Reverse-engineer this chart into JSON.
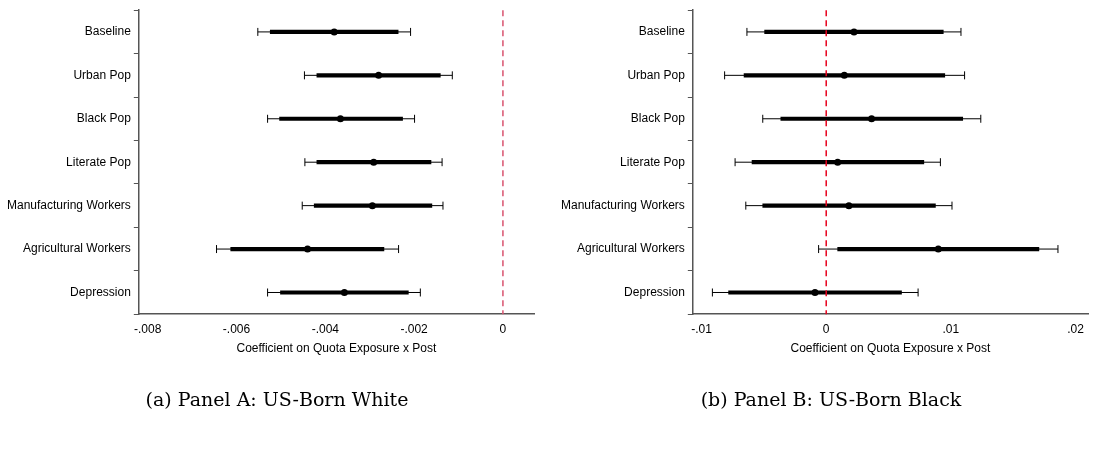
{
  "chart_data": [
    {
      "type": "scatter",
      "orientation": "horizontal",
      "title": "(a) Panel A: US-Born White",
      "xlabel": "Coefficient on Quota Exposure x Post",
      "categories": [
        "Baseline",
        "Urban Pop",
        "Black Pop",
        "Literate Pop",
        "Manufacturing Workers",
        "Agricultural Workers",
        "Depression"
      ],
      "xlim": [
        -0.0082,
        0.0007
      ],
      "xticks": [
        {
          "value": -0.008,
          "label": "-.008"
        },
        {
          "value": -0.006,
          "label": "-.006"
        },
        {
          "value": -0.004,
          "label": "-.004"
        },
        {
          "value": -0.002,
          "label": "-.002"
        },
        0
      ],
      "grid": false,
      "legend": false,
      "ref_lines": [
        {
          "axis": "x",
          "value": 0,
          "color": "#d9536f",
          "line_style": "dashed"
        }
      ],
      "series": [
        {
          "type": "bar",
          "color": "#000000",
          "base": [
            -0.00524,
            -0.00419,
            -0.00503,
            -0.00419,
            -0.00425,
            -0.00613,
            -0.00501
          ],
          "values": [
            0.00288,
            0.00278,
            0.00277,
            0.00257,
            0.00265,
            0.00345,
            0.00288
          ]
        },
        {
          "type": "scatter",
          "color": "#000000",
          "marker": "circle",
          "values": [
            -0.0038,
            -0.0028,
            -0.00366,
            -0.00291,
            -0.00294,
            -0.0044,
            -0.00357
          ],
          "errors": [
            [
              -0.00552,
              -0.00208
            ],
            [
              -0.00447,
              -0.00114
            ],
            [
              -0.0053,
              -0.00199
            ],
            [
              -0.00446,
              -0.00137
            ],
            [
              -0.00452,
              -0.00135
            ],
            [
              -0.00645,
              -0.00235
            ],
            [
              -0.0053,
              -0.00186
            ]
          ]
        }
      ]
    },
    {
      "type": "scatter",
      "orientation": "horizontal",
      "title": "(b) Panel B: US-Born Black",
      "xlabel": "Coefficient on Quota Exposure x Post",
      "categories": [
        "Baseline",
        "Urban Pop",
        "Black Pop",
        "Literate Pop",
        "Manufacturing Workers",
        "Agricultural Workers",
        "Depression"
      ],
      "xlim": [
        -0.0107,
        0.021
      ],
      "xticks": [
        {
          "value": -0.01,
          "label": "-.01"
        },
        0,
        {
          "value": 0.01,
          "label": ".01"
        },
        {
          "value": 0.02,
          "label": ".02"
        }
      ],
      "grid": false,
      "legend": false,
      "ref_lines": [
        {
          "axis": "x",
          "value": 0,
          "color": "#e8001c",
          "line_style": "dashed"
        }
      ],
      "series": [
        {
          "type": "bar",
          "color": "#000000",
          "base": [
            -0.00494,
            -0.00659,
            -0.00364,
            -0.00595,
            -0.00509,
            0.00092,
            -0.00783
          ],
          "values": [
            0.01433,
            0.0161,
            0.01459,
            0.01378,
            0.01385,
            0.01614,
            0.01387
          ]
        },
        {
          "type": "scatter",
          "color": "#000000",
          "marker": "circle",
          "values": [
            0.00223,
            0.00145,
            0.00364,
            0.00092,
            0.00182,
            0.00899,
            -0.0009
          ],
          "errors": [
            [
              -0.00636,
              0.01081
            ],
            [
              -0.00815,
              0.0111
            ],
            [
              -0.00509,
              0.0124
            ],
            [
              -0.00731,
              0.00916
            ],
            [
              -0.00645,
              0.01009
            ],
            [
              -0.00061,
              0.01859
            ],
            [
              -0.00913,
              0.00737
            ]
          ]
        }
      ]
    }
  ]
}
